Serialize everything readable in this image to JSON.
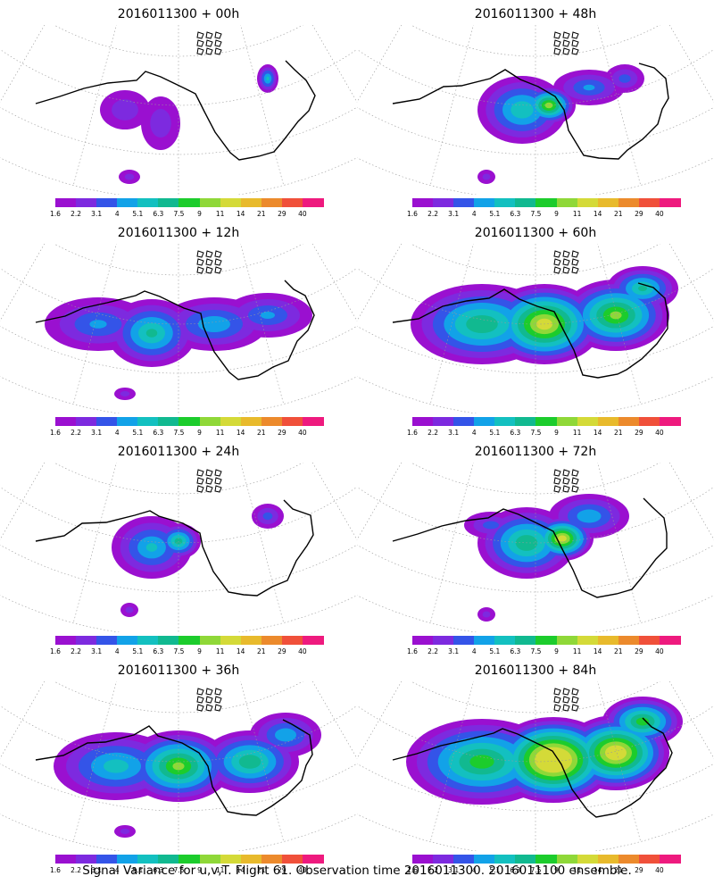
{
  "panels": [
    {
      "title": "2016011300 + 00h",
      "level": 0
    },
    {
      "title": "2016011300 + 48h",
      "level": 4
    },
    {
      "title": "2016011300 + 12h",
      "level": 1
    },
    {
      "title": "2016011300 + 60h",
      "level": 5
    },
    {
      "title": "2016011300 + 24h",
      "level": 2
    },
    {
      "title": "2016011300 + 72h",
      "level": 6
    },
    {
      "title": "2016011300 + 36h",
      "level": 3
    },
    {
      "title": "2016011300 + 84h",
      "level": 7
    }
  ],
  "colorbar": {
    "ticks": [
      "1.6",
      "2.2",
      "3.1",
      "4",
      "5.1",
      "6.3",
      "7.5",
      "9",
      "11",
      "14",
      "21",
      "29",
      "40"
    ],
    "colors": [
      "#9a10d0",
      "#7d2adf",
      "#3454e8",
      "#12a2e8",
      "#13c0c0",
      "#11b990",
      "#1ccc2c",
      "#8fd838",
      "#d4da38",
      "#e8ba2c",
      "#ec8a2c",
      "#f0503a",
      "#ee1a7e"
    ]
  },
  "caption": "Signal Variance for u,v,T. Flight 61. Observation time 2016011300. 2016011100 ensemble."
}
